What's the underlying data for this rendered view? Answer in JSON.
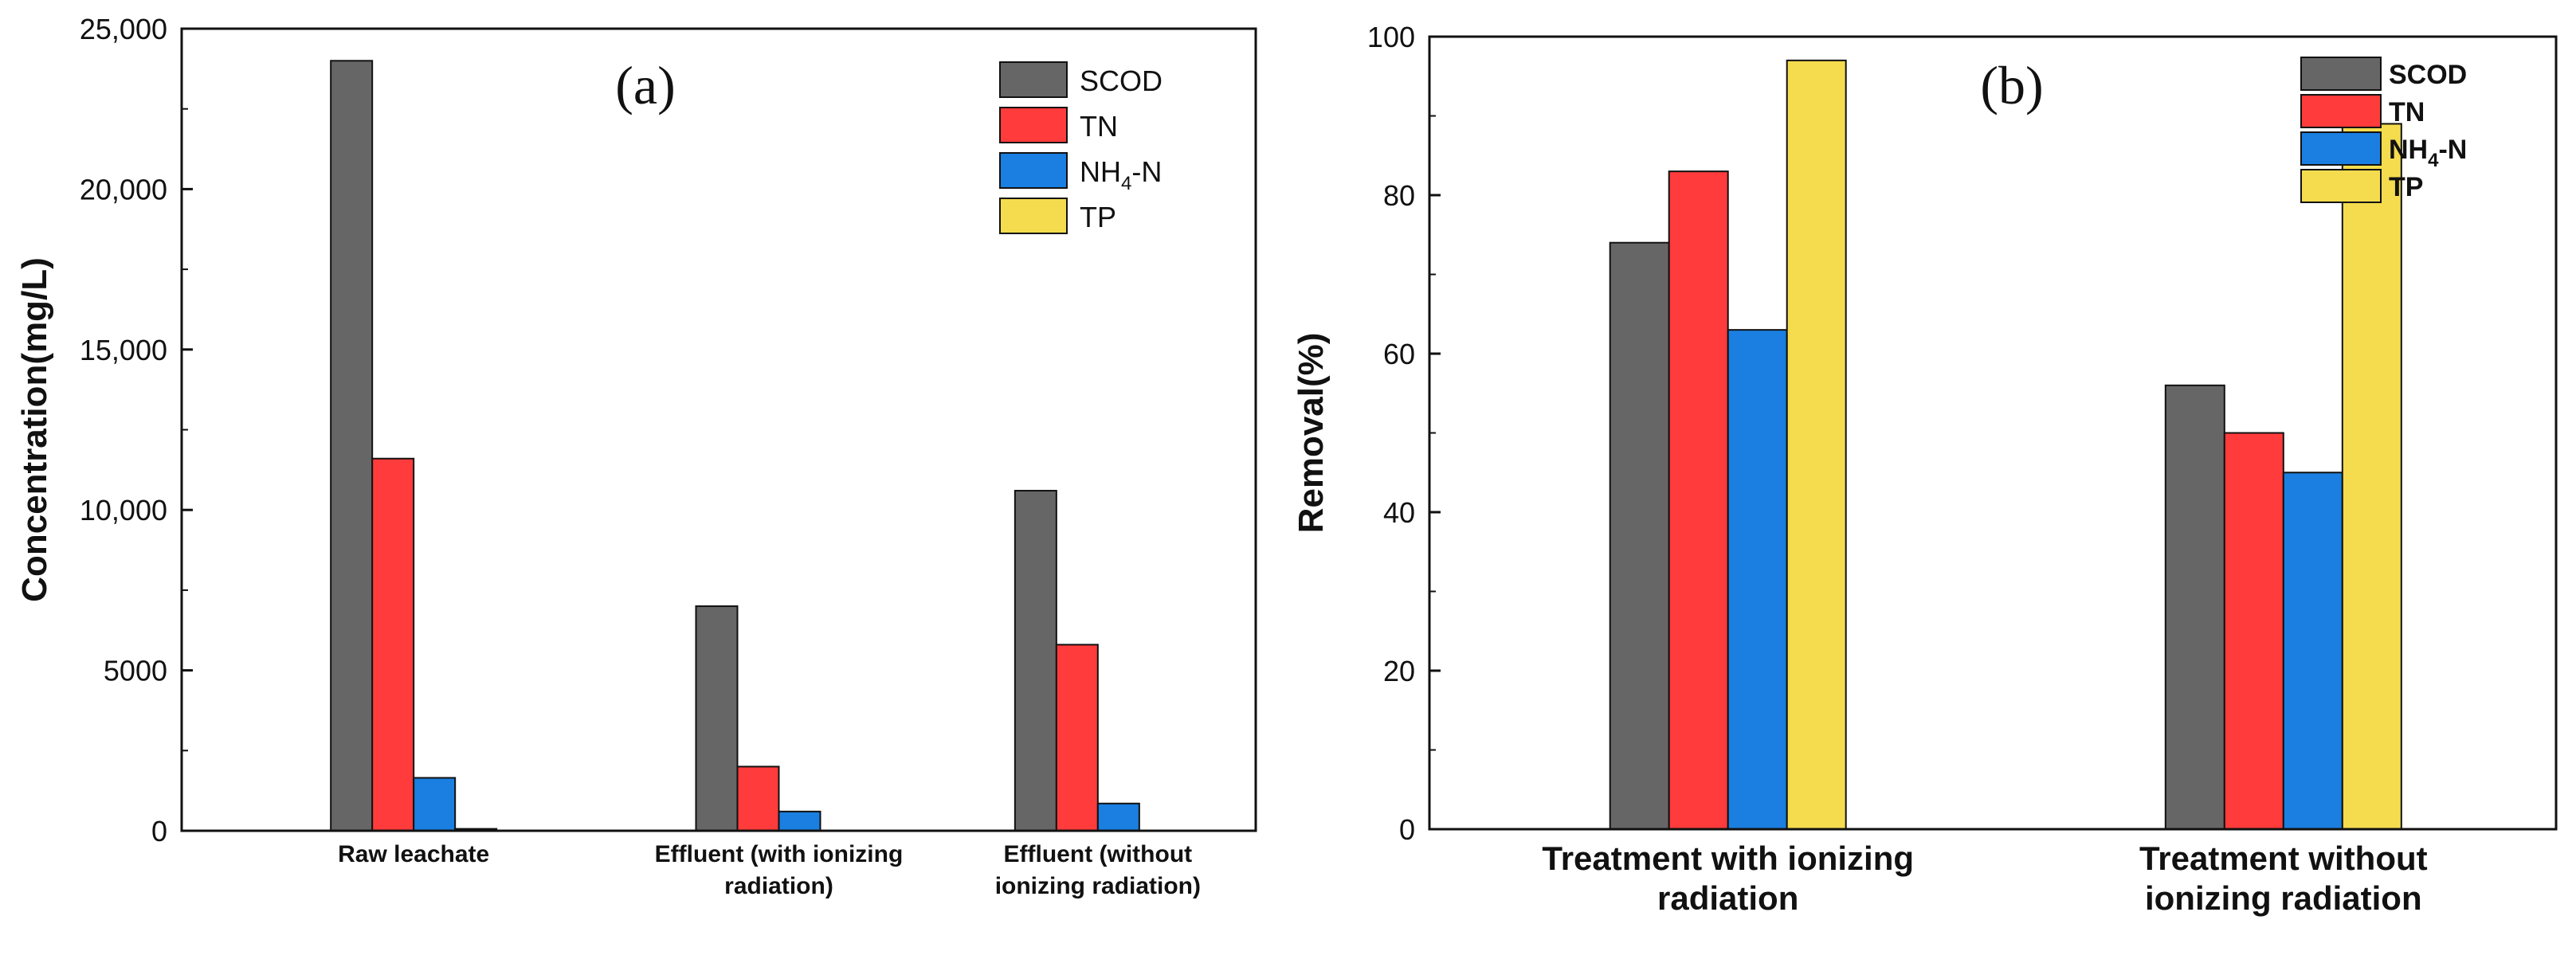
{
  "chart_data": [
    {
      "id": "a",
      "type": "bar",
      "panel_label": "(a)",
      "ylabel": "Concentration(mg/L)",
      "xlabel": "",
      "ylim": [
        0,
        25000
      ],
      "yticks": [
        0,
        5000,
        10000,
        15000,
        20000,
        25000
      ],
      "ytick_labels": [
        "0",
        "5000",
        "10,000",
        "15,000",
        "20,000",
        "25,000"
      ],
      "categories": [
        "Raw leachate",
        "Effluent (with ionizing radiation)",
        "Effluent (without ionizing radiation)"
      ],
      "category_lines": [
        [
          "Raw leachate"
        ],
        [
          "Effluent (with ionizing",
          "radiation)"
        ],
        [
          "Effluent (without",
          "ionizing radiation)"
        ]
      ],
      "series": [
        {
          "name": "SCOD",
          "color": "#666666",
          "values": [
            24000,
            7000,
            10600
          ]
        },
        {
          "name": "TN",
          "color": "#ff3b3b",
          "values": [
            11600,
            2000,
            5800
          ]
        },
        {
          "name": "NH4-N",
          "color": "#1a7fe0",
          "values": [
            1650,
            600,
            850
          ]
        },
        {
          "name": "TP",
          "color": "#f5dc4e",
          "values": [
            60,
            10,
            10
          ]
        }
      ],
      "legend": {
        "location": "top-right",
        "entries": [
          "SCOD",
          "TN",
          "NH",
          "4",
          "-N",
          "TP"
        ]
      },
      "grid": false
    },
    {
      "id": "b",
      "type": "bar",
      "panel_label": "(b)",
      "ylabel": "Removal(%)",
      "xlabel": "",
      "ylim": [
        0,
        100
      ],
      "yticks": [
        0,
        20,
        40,
        60,
        80,
        100
      ],
      "ytick_labels": [
        "0",
        "20",
        "40",
        "60",
        "80",
        "100"
      ],
      "categories": [
        "Treatment with ionizing radiation",
        "Treatment without ionizing radiation"
      ],
      "category_lines": [
        [
          "Treatment with ionizing",
          "radiation"
        ],
        [
          "Treatment without",
          "ionizing radiation"
        ]
      ],
      "series": [
        {
          "name": "SCOD",
          "color": "#666666",
          "values": [
            74,
            56
          ]
        },
        {
          "name": "TN",
          "color": "#ff3b3b",
          "values": [
            83,
            50
          ]
        },
        {
          "name": "NH4-N",
          "color": "#1a7fe0",
          "values": [
            63,
            45
          ]
        },
        {
          "name": "TP",
          "color": "#f5dc4e",
          "values": [
            97,
            89
          ]
        }
      ],
      "legend": {
        "location": "top-right",
        "entries": [
          "SCOD",
          "TN",
          "NH",
          "4",
          "-N",
          "TP"
        ]
      },
      "grid": false
    }
  ]
}
